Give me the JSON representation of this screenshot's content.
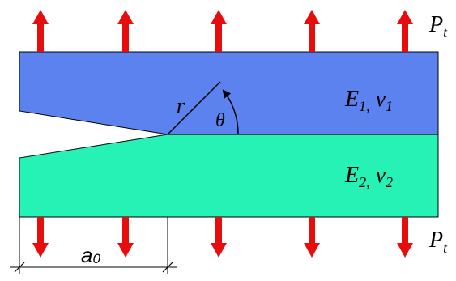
{
  "labels": {
    "top_load": {
      "main": "P",
      "sub": "t"
    },
    "bottom_load": {
      "main": "P",
      "sub": "t"
    },
    "upper_material": {
      "e": "E",
      "e_sub": "1,",
      "nu": "ν",
      "nu_sub": "1"
    },
    "lower_material": {
      "e": "E",
      "e_sub": "2,",
      "nu": "ν",
      "nu_sub": "2"
    },
    "radius": "r",
    "angle": "θ",
    "crack_length": {
      "main": "a",
      "sub": "0"
    }
  },
  "colors": {
    "upper_layer": "#5b82ef",
    "lower_layer": "#26f2b6",
    "arrow": "#e80d0d",
    "line": "#000000",
    "background": "#ffffff"
  },
  "load_arrow_count": 5
}
